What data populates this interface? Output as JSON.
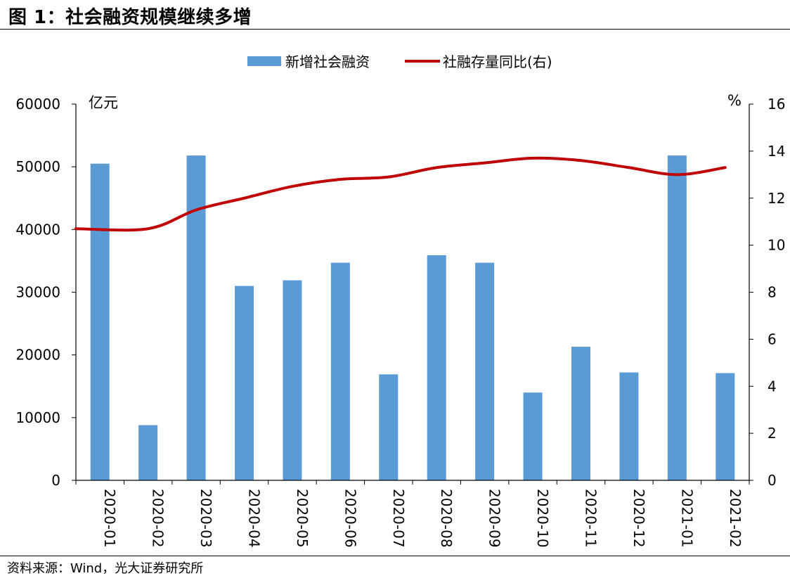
{
  "figure": {
    "title": "图 1：社会融资规模继续多增",
    "source": "资料来源：Wind，光大证券研究所"
  },
  "chart_data": {
    "type": "bar",
    "categories": [
      "2020-01",
      "2020-02",
      "2020-03",
      "2020-04",
      "2020-05",
      "2020-06",
      "2020-07",
      "2020-08",
      "2020-09",
      "2020-10",
      "2020-11",
      "2020-12",
      "2021-01",
      "2021-02"
    ],
    "series": [
      {
        "name": "新增社会融资",
        "type": "bar",
        "axis": "left",
        "color": "#5B9BD5",
        "values": [
          50500,
          8800,
          51800,
          31000,
          31900,
          34700,
          16900,
          35900,
          34700,
          14000,
          21300,
          17200,
          51800,
          17100
        ]
      },
      {
        "name": "社融存量同比(右)",
        "type": "line",
        "axis": "right",
        "color": "#C00000",
        "values": [
          10.7,
          10.7,
          11.5,
          12.0,
          12.5,
          12.8,
          12.9,
          13.3,
          13.5,
          13.7,
          13.6,
          13.3,
          13.0,
          13.3
        ]
      }
    ],
    "y_left": {
      "unit": "亿元",
      "ylim": [
        0,
        60000
      ],
      "ticks": [
        0,
        10000,
        20000,
        30000,
        40000,
        50000,
        60000
      ]
    },
    "y_right": {
      "unit": "%",
      "ylim": [
        0,
        16
      ],
      "ticks": [
        0,
        2,
        4,
        6,
        8,
        10,
        12,
        14,
        16
      ]
    },
    "grid": false,
    "legend_position": "top-center"
  }
}
